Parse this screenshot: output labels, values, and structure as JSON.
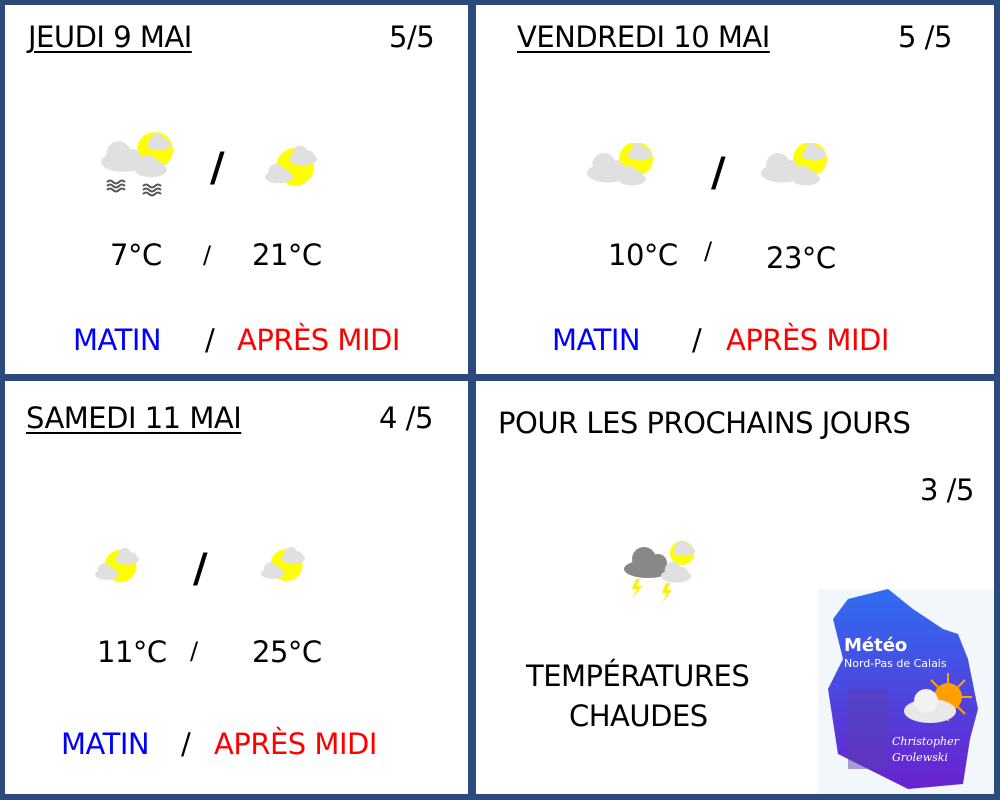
{
  "days": [
    {
      "title": "JEUDI 9 MAI",
      "rating": "5/5",
      "temp_morning": "7°C",
      "temp_afternoon": "21°C",
      "icon_morning": "fog-cloud-sun-icon",
      "icon_afternoon": "sun-cloud-icon"
    },
    {
      "title": "VENDREDI 10 MAI",
      "rating": "5 /5",
      "temp_morning": "10°C",
      "temp_afternoon": "23°C",
      "icon_morning": "cloud-sun-icon",
      "icon_afternoon": "cloud-sun-icon"
    },
    {
      "title": "SAMEDI 11 MAI",
      "rating": "4 /5",
      "temp_morning": "11°C",
      "temp_afternoon": "25°C",
      "icon_morning": "sun-cloud-icon",
      "icon_afternoon": "sun-cloud-icon"
    }
  ],
  "labels": {
    "morning": "MATIN",
    "afternoon": "APRÈS MIDI",
    "sep": "/"
  },
  "outlook": {
    "title": "POUR LES PROCHAINS JOURS",
    "rating": "3 /5",
    "icon": "thunderstorm-icon",
    "text_line1": "TEMPÉRATURES",
    "text_line2": "CHAUDES"
  },
  "logo": {
    "title": "Météo",
    "subtitle": "Nord-Pas de Calais",
    "author_line1": "Christopher",
    "author_line2": "Grolewski"
  },
  "colors": {
    "border": "#2d4a7c",
    "morning": "#0000ff",
    "afternoon": "#ff0000",
    "sun": "#ffff00"
  }
}
